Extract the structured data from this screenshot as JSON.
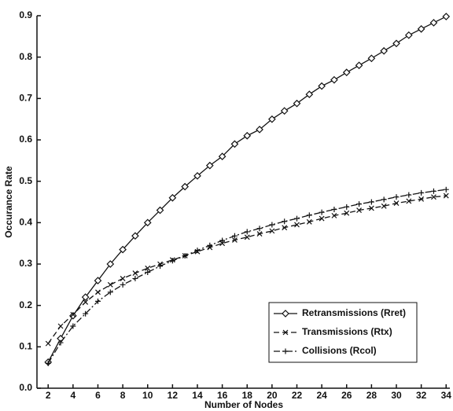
{
  "chart_data": {
    "type": "line",
    "x_label": "Number of Nodes",
    "y_label": "Occurance Rate",
    "x": [
      2,
      3,
      4,
      5,
      6,
      7,
      8,
      9,
      10,
      11,
      12,
      13,
      14,
      15,
      16,
      17,
      18,
      19,
      20,
      21,
      22,
      23,
      24,
      25,
      26,
      27,
      28,
      29,
      30,
      31,
      32,
      33,
      34
    ],
    "series": [
      {
        "name": "Retransmissions (Rret)",
        "color": "#111111",
        "marker": "diamond",
        "style": "solid",
        "values": [
          0.063,
          0.12,
          0.175,
          0.22,
          0.26,
          0.3,
          0.335,
          0.368,
          0.4,
          0.43,
          0.46,
          0.487,
          0.513,
          0.538,
          0.56,
          0.59,
          0.61,
          0.625,
          0.65,
          0.67,
          0.688,
          0.71,
          0.73,
          0.745,
          0.763,
          0.78,
          0.797,
          0.815,
          0.833,
          0.853,
          0.868,
          0.883,
          0.898
        ]
      },
      {
        "name": "Transmissions (Rtx)",
        "color": "#111111",
        "marker": "x",
        "style": "dashed",
        "values": [
          0.108,
          0.15,
          0.178,
          0.208,
          0.232,
          0.25,
          0.265,
          0.278,
          0.29,
          0.3,
          0.31,
          0.32,
          0.33,
          0.34,
          0.35,
          0.358,
          0.365,
          0.373,
          0.38,
          0.388,
          0.395,
          0.402,
          0.41,
          0.417,
          0.423,
          0.43,
          0.435,
          0.44,
          0.447,
          0.452,
          0.457,
          0.462,
          0.465
        ]
      },
      {
        "name": "Collisions (Rcol)",
        "color": "#111111",
        "marker": "plus",
        "style": "dashdot",
        "values": [
          0.06,
          0.11,
          0.15,
          0.18,
          0.21,
          0.232,
          0.25,
          0.265,
          0.28,
          0.295,
          0.308,
          0.32,
          0.333,
          0.345,
          0.357,
          0.368,
          0.378,
          0.386,
          0.395,
          0.403,
          0.41,
          0.418,
          0.425,
          0.432,
          0.438,
          0.445,
          0.45,
          0.456,
          0.462,
          0.467,
          0.472,
          0.476,
          0.48
        ]
      }
    ],
    "xlim": [
      1.1,
      34.3
    ],
    "ylim": [
      0,
      0.9
    ],
    "xticks": [
      2,
      4,
      6,
      8,
      10,
      12,
      14,
      16,
      18,
      20,
      22,
      24,
      26,
      28,
      30,
      32,
      34
    ],
    "yticks": [
      {
        "value": 0,
        "label": "0.0"
      },
      0.1,
      0.2,
      0.3,
      0.4,
      0.5,
      0.6,
      0.7,
      0.8,
      0.9
    ],
    "legend": "lower right",
    "grid": false
  }
}
